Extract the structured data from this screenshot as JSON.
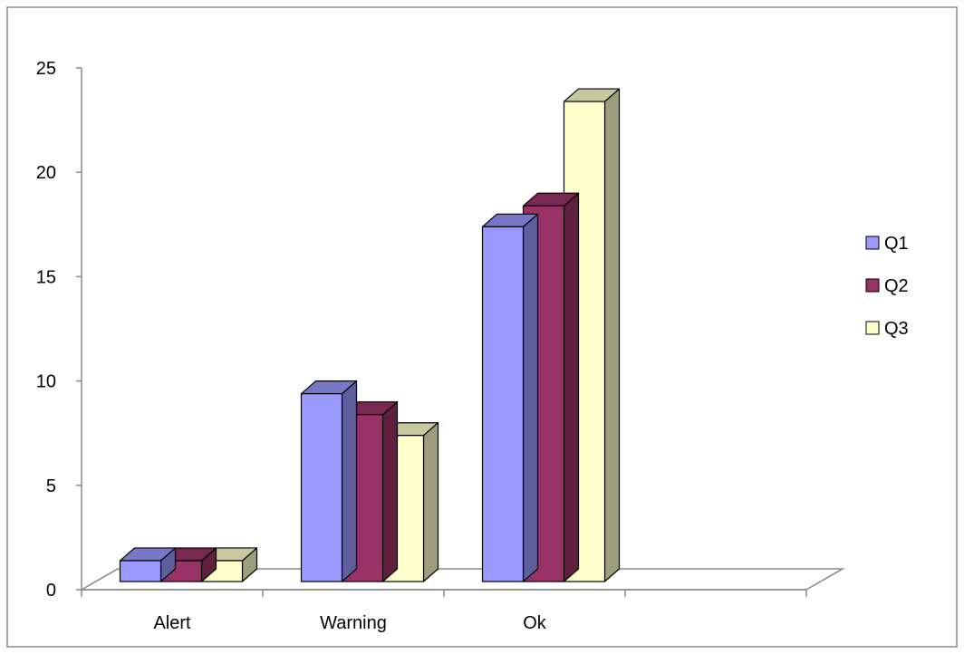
{
  "chart_data": {
    "type": "bar",
    "style": "3d-clustered-column",
    "title": "",
    "xlabel": "",
    "ylabel": "",
    "categories": [
      "Alert",
      "Warning",
      "Ok"
    ],
    "series": [
      {
        "name": "Q1",
        "values": [
          1,
          9,
          17
        ],
        "color": "#9999ff"
      },
      {
        "name": "Q2",
        "values": [
          1,
          8,
          18
        ],
        "color": "#993366"
      },
      {
        "name": "Q3",
        "values": [
          1,
          7,
          23
        ],
        "color": "#ffffcc"
      }
    ],
    "ylim": [
      0,
      25
    ],
    "yticks": [
      0,
      5,
      10,
      15,
      20,
      25
    ],
    "grid": false,
    "legend_position": "right"
  }
}
